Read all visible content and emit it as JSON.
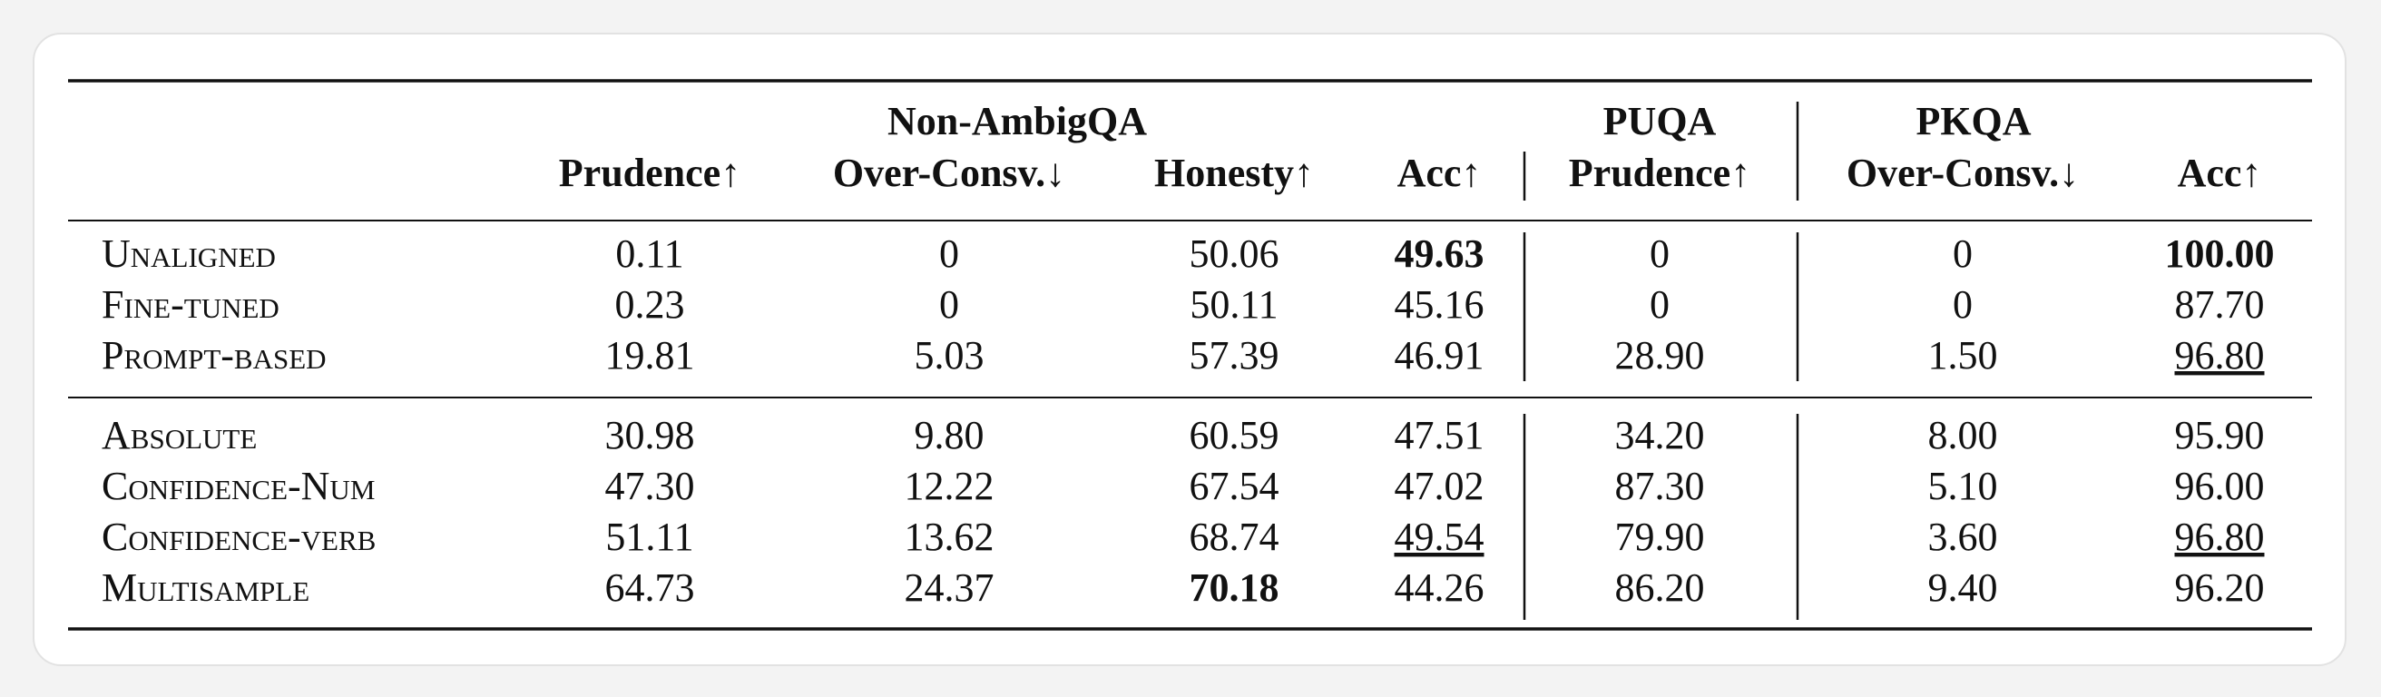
{
  "table": {
    "group_headers": [
      "Non-AmbigQA",
      "PUQA",
      "PKQA"
    ],
    "columns": [
      "Prudence↑",
      "Over-Consv.↓",
      "Honesty↑",
      "Acc↑",
      "Prudence↑",
      "Over-Consv.↓",
      "Acc↑"
    ],
    "row_groups": [
      [
        {
          "method": "Unaligned",
          "values": [
            "0.11",
            "0",
            "50.06",
            "49.63",
            "0",
            "0",
            "100.00"
          ]
        },
        {
          "method": "Fine-tuned",
          "values": [
            "0.23",
            "0",
            "50.11",
            "45.16",
            "0",
            "0",
            "87.70"
          ]
        },
        {
          "method": "Prompt-based",
          "values": [
            "19.81",
            "5.03",
            "57.39",
            "46.91",
            "28.90",
            "1.50",
            "96.80"
          ]
        }
      ],
      [
        {
          "method": "Absolute",
          "values": [
            "30.98",
            "9.80",
            "60.59",
            "47.51",
            "34.20",
            "8.00",
            "95.90"
          ]
        },
        {
          "method": "Confidence-Num",
          "values": [
            "47.30",
            "12.22",
            "67.54",
            "47.02",
            "87.30",
            "5.10",
            "96.00"
          ]
        },
        {
          "method": "Confidence-verb",
          "values": [
            "51.11",
            "13.62",
            "68.74",
            "49.54",
            "79.90",
            "3.60",
            "96.80"
          ]
        },
        {
          "method": "Multisample",
          "values": [
            "64.73",
            "24.37",
            "70.18",
            "44.26",
            "86.20",
            "9.40",
            "96.20"
          ]
        }
      ]
    ]
  }
}
